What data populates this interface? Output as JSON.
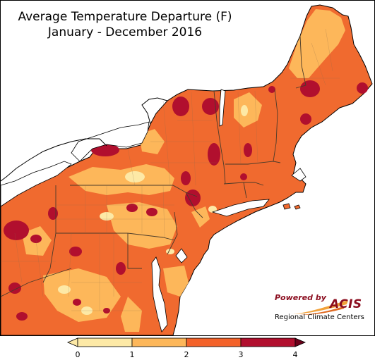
{
  "title": {
    "line1": "Average Temperature Departure (F)",
    "line2": "January - December 2016"
  },
  "credit": {
    "powered_by": "Powered by",
    "brand": "ACIS",
    "org": "Regional Climate Centers"
  },
  "legend": {
    "unit": "F",
    "ticks": [
      "0",
      "1",
      "2",
      "3",
      "4"
    ],
    "bins": [
      {
        "range": "0-1",
        "color": "#fde9a6"
      },
      {
        "range": "1-2",
        "color": "#fdb75a"
      },
      {
        "range": "2-3",
        "color": "#f4622a"
      },
      {
        "range": "3-4",
        "color": "#b10f2e"
      }
    ],
    "under_color": "#fde9a6",
    "over_color": "#6b0019"
  },
  "colors": {
    "land_base": "#f06a2f",
    "water": "#ffffff",
    "borders": "#7a5c3a"
  }
}
